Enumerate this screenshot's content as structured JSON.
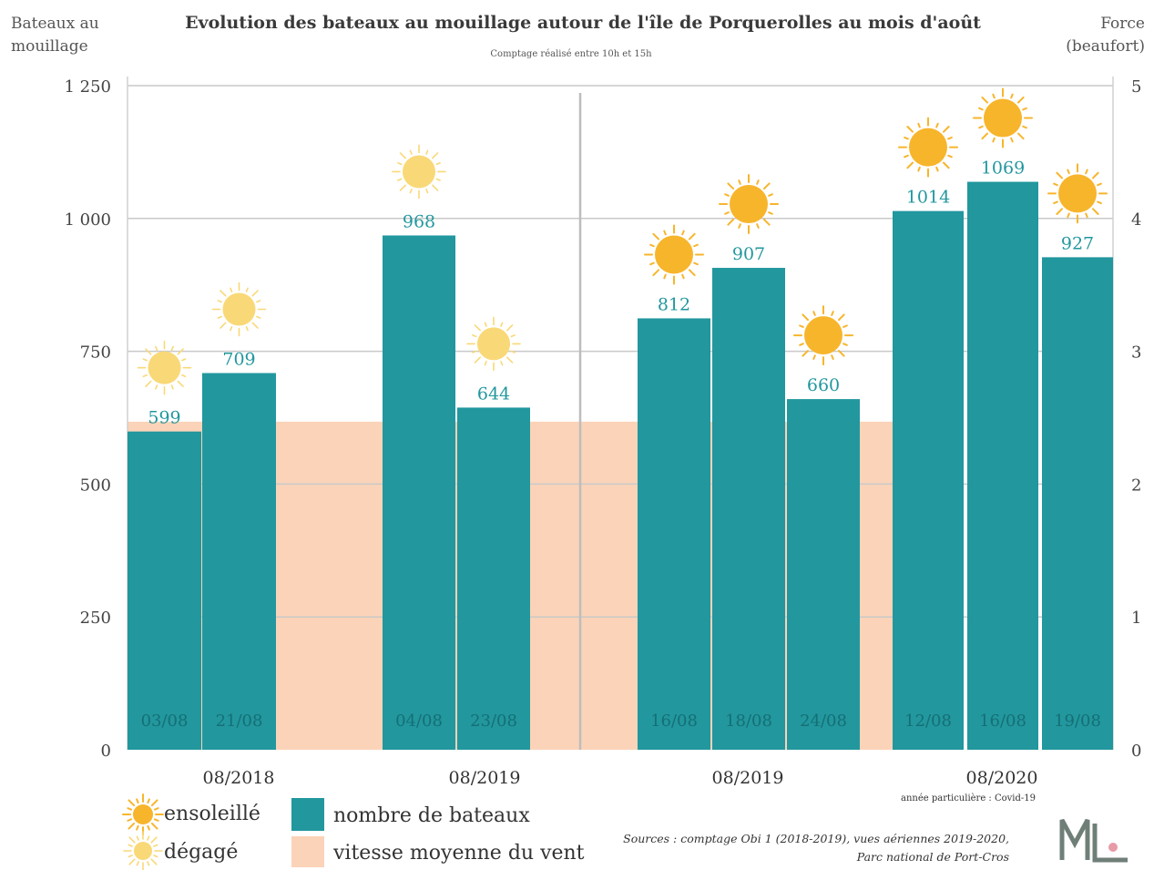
{
  "chart_data": {
    "type": "bar",
    "title": "Evolution des bateaux au mouillage autour de l'île de Porquerolles au mois d'août",
    "subtitle": "Comptage réalisé entre 10h et 15h",
    "ylabel_left": [
      "Bateaux au",
      "mouillage"
    ],
    "ylabel_right": [
      "Force",
      "(beaufort)"
    ],
    "ylim_left": [
      0,
      1250
    ],
    "ylim_right": [
      0,
      5
    ],
    "left_ticks": [
      "0",
      "250",
      "500",
      "750",
      "1 000",
      "1 250"
    ],
    "right_ticks": [
      "0",
      "1",
      "2",
      "3",
      "4",
      "5"
    ],
    "grid": true,
    "groups": [
      {
        "label": "08/2018",
        "dates": [
          "03/08",
          "21/08"
        ],
        "values": [
          599,
          709
        ],
        "sky": [
          "dégagé",
          "dégagé"
        ],
        "wind": 2.47
      },
      {
        "label": "08/2019",
        "dates": [
          "04/08",
          "23/08"
        ],
        "values": [
          968,
          644
        ],
        "sky": [
          "dégagé",
          "dégagé"
        ],
        "wind": 2.47
      },
      {
        "label": "08/2019",
        "dates": [
          "16/08",
          "18/08",
          "24/08"
        ],
        "values": [
          812,
          907,
          660
        ],
        "sky": [
          "ensoleillé",
          "ensoleillé",
          "ensoleillé"
        ],
        "wind": 2.47
      },
      {
        "label": "08/2020",
        "dates": [
          "12/08",
          "16/08",
          "19/08"
        ],
        "values": [
          1014,
          1069,
          927
        ],
        "sky": [
          "ensoleillé",
          "ensoleillé",
          "ensoleillé"
        ],
        "wind": null
      }
    ],
    "note_2020": "année particulière : Covid-19",
    "legend": {
      "ensoleille": "ensoleillé",
      "degage": "dégagé",
      "bars": "nombre de bateaux",
      "wind": "vitesse moyenne du vent"
    },
    "source_lines": [
      "Sources : comptage Obi 1 (2018-2019), vues aériennes 2019-2020,",
      "Parc national de Port-Cros"
    ],
    "colors": {
      "bar": "#22979e",
      "wind": "#fbd3b8",
      "sun_sunny": "#f7b52c",
      "sun_clear": "#f9d877",
      "text_value": "#22979e"
    }
  }
}
